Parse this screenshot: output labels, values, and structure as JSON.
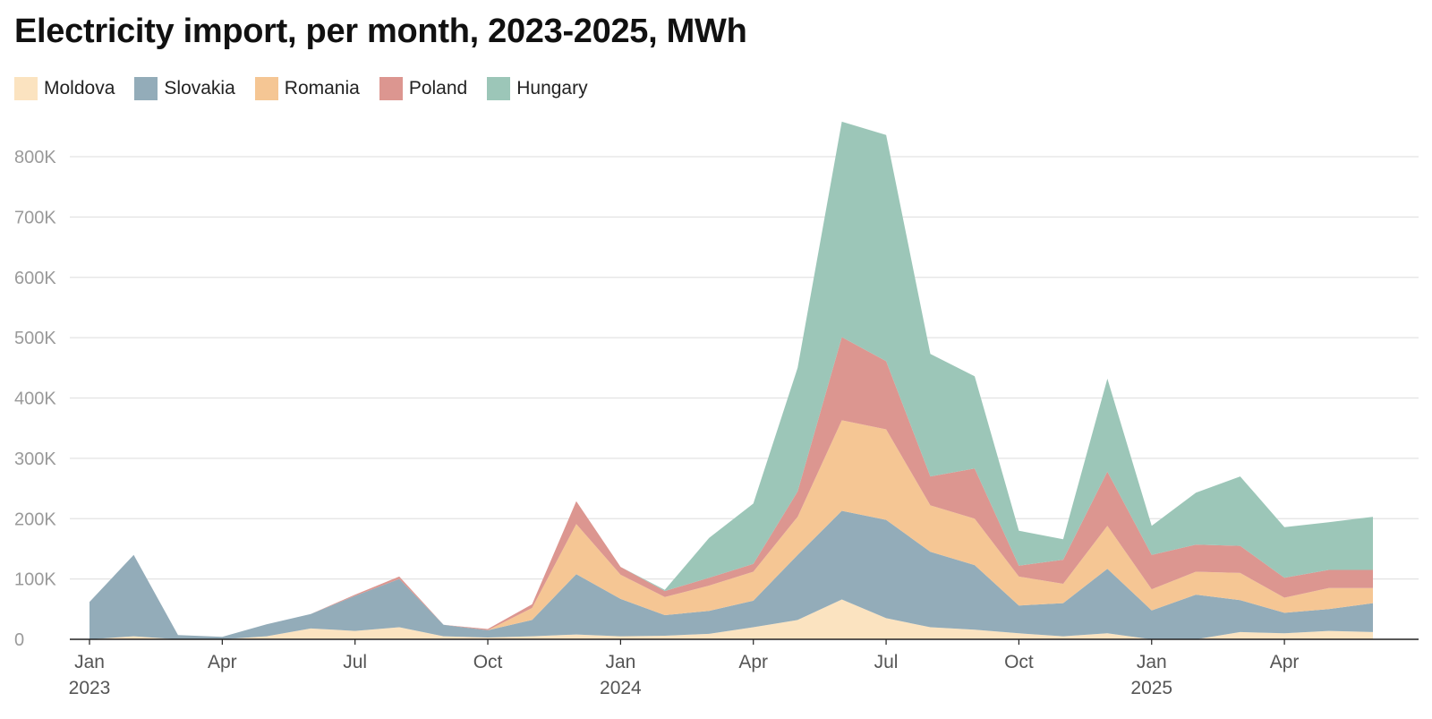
{
  "title": "Electricity import, per month, 2023-2025, MWh",
  "chart_data": {
    "type": "area",
    "stacked": true,
    "title": "Electricity import, per month, 2023-2025, MWh",
    "xlabel": "",
    "ylabel": "",
    "ylim": [
      0,
      860000
    ],
    "yticks": [
      0,
      100000,
      200000,
      300000,
      400000,
      500000,
      600000,
      700000,
      800000
    ],
    "ytick_labels": [
      "0",
      "100K",
      "200K",
      "300K",
      "400K",
      "500K",
      "600K",
      "700K",
      "800K"
    ],
    "xticks": [
      {
        "month": "2023-01",
        "label": "Jan",
        "year": "2023"
      },
      {
        "month": "2023-04",
        "label": "Apr",
        "year": ""
      },
      {
        "month": "2023-07",
        "label": "Jul",
        "year": ""
      },
      {
        "month": "2023-10",
        "label": "Oct",
        "year": ""
      },
      {
        "month": "2024-01",
        "label": "Jan",
        "year": "2024"
      },
      {
        "month": "2024-04",
        "label": "Apr",
        "year": ""
      },
      {
        "month": "2024-07",
        "label": "Jul",
        "year": ""
      },
      {
        "month": "2024-10",
        "label": "Oct",
        "year": ""
      },
      {
        "month": "2025-01",
        "label": "Jan",
        "year": "2025"
      },
      {
        "month": "2025-04",
        "label": "Apr",
        "year": ""
      }
    ],
    "grid": true,
    "legend_position": "top-left",
    "x": [
      "2023-01",
      "2023-02",
      "2023-03",
      "2023-04",
      "2023-05",
      "2023-06",
      "2023-07",
      "2023-08",
      "2023-09",
      "2023-10",
      "2023-11",
      "2023-12",
      "2024-01",
      "2024-02",
      "2024-03",
      "2024-04",
      "2024-05",
      "2024-06",
      "2024-07",
      "2024-08",
      "2024-09",
      "2024-10",
      "2024-11",
      "2024-12",
      "2025-01",
      "2025-02",
      "2025-03",
      "2025-04",
      "2025-05",
      "2025-06"
    ],
    "series": [
      {
        "name": "Moldova",
        "color": "#fbe3c0",
        "values": [
          0,
          5000,
          0,
          0,
          5000,
          18000,
          14000,
          20000,
          5000,
          3000,
          5000,
          8000,
          5000,
          6000,
          9000,
          20000,
          32000,
          66000,
          35000,
          20000,
          16000,
          10000,
          5000,
          10000,
          0,
          0,
          12000,
          10000,
          14000,
          12000
        ]
      },
      {
        "name": "Slovakia",
        "color": "#93acb9",
        "values": [
          62000,
          135000,
          7000,
          4000,
          20000,
          24000,
          58000,
          80000,
          19000,
          12000,
          27000,
          100000,
          62000,
          34000,
          38000,
          44000,
          108000,
          147000,
          163000,
          125000,
          107000,
          46000,
          55000,
          107000,
          48000,
          74000,
          53000,
          34000,
          36000,
          48000
        ]
      },
      {
        "name": "Romania",
        "color": "#f5c694",
        "values": [
          0,
          0,
          0,
          0,
          0,
          0,
          0,
          0,
          0,
          0,
          20000,
          83000,
          40000,
          30000,
          42000,
          48000,
          63000,
          150000,
          150000,
          77000,
          77000,
          48000,
          32000,
          71000,
          35000,
          38000,
          45000,
          25000,
          35000,
          25000
        ]
      },
      {
        "name": "Poland",
        "color": "#dc9690",
        "values": [
          0,
          0,
          0,
          0,
          0,
          0,
          2000,
          4000,
          0,
          2000,
          6000,
          38000,
          13000,
          10000,
          13000,
          13000,
          42000,
          138000,
          113000,
          48000,
          83000,
          18000,
          40000,
          90000,
          57000,
          45000,
          45000,
          33000,
          30000,
          30000
        ]
      },
      {
        "name": "Hungary",
        "color": "#9cc6b8",
        "values": [
          0,
          0,
          0,
          0,
          0,
          0,
          0,
          0,
          0,
          0,
          0,
          0,
          0,
          2000,
          66000,
          100000,
          205000,
          357000,
          375000,
          203000,
          153000,
          58000,
          34000,
          154000,
          48000,
          86000,
          115000,
          84000,
          79000,
          88000
        ]
      }
    ]
  }
}
